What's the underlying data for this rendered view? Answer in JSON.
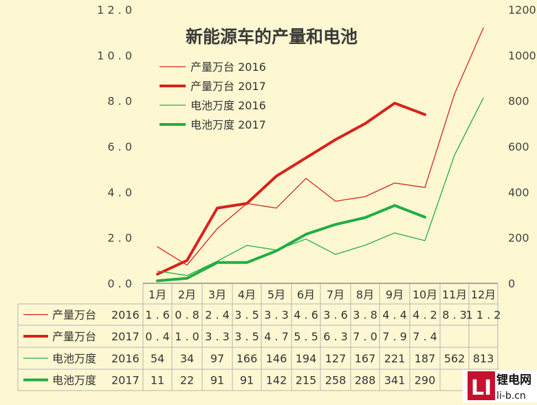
{
  "chart_data": {
    "type": "line",
    "title": "新能源车的产量和电池",
    "categories": [
      "1月",
      "2月",
      "3月",
      "4月",
      "5月",
      "6月",
      "7月",
      "8月",
      "9月",
      "10月",
      "11月",
      "12月"
    ],
    "y_left": {
      "ticks": [
        "0.0",
        "2.0",
        "4.0",
        "6.0",
        "8.0",
        "10.0",
        "12.0"
      ],
      "ylim": [
        0,
        12
      ]
    },
    "y_right": {
      "ticks": [
        "0",
        "200",
        "400",
        "600",
        "800",
        "1000",
        "1200"
      ],
      "ylim": [
        0,
        1200
      ]
    },
    "grid": "vertical lines in the data table",
    "legend_position": "top-left",
    "series": [
      {
        "name": "产量万台",
        "year": "2016",
        "axis": "left",
        "color": "#d9221a",
        "width": "thin",
        "values": [
          1.6,
          0.8,
          2.4,
          3.5,
          3.3,
          4.6,
          3.6,
          3.8,
          4.4,
          4.2,
          8.3,
          11.2
        ],
        "labels": [
          "1.6",
          "0.8",
          "2.4",
          "3.5",
          "3.3",
          "4.6",
          "3.6",
          "3.8",
          "4.4",
          "4.2",
          "8.3",
          "11.2"
        ]
      },
      {
        "name": "产量万台",
        "year": "2017",
        "axis": "left",
        "color": "#d9221a",
        "width": "thick",
        "values": [
          0.4,
          1.0,
          3.3,
          3.5,
          4.7,
          5.5,
          6.3,
          7.0,
          7.9,
          7.4,
          null,
          null
        ],
        "labels": [
          "0.4",
          "1.0",
          "3.3",
          "3.5",
          "4.7",
          "5.5",
          "6.3",
          "7.0",
          "7.9",
          "7.4",
          "",
          ""
        ]
      },
      {
        "name": "电池万度",
        "year": "2016",
        "axis": "right",
        "color": "#22ad45",
        "width": "thin",
        "values": [
          54,
          34,
          97,
          166,
          146,
          194,
          127,
          167,
          221,
          187,
          562,
          813
        ],
        "labels": [
          "54",
          "34",
          "97",
          "166",
          "146",
          "194",
          "127",
          "167",
          "221",
          "187",
          "562",
          "813"
        ]
      },
      {
        "name": "电池万度",
        "year": "2017",
        "axis": "right",
        "color": "#22ad45",
        "width": "thick",
        "values": [
          11,
          22,
          91,
          91,
          142,
          215,
          258,
          288,
          341,
          290,
          null,
          null
        ],
        "labels": [
          "11",
          "22",
          "91",
          "91",
          "142",
          "215",
          "258",
          "288",
          "341",
          "290",
          "",
          ""
        ]
      }
    ]
  },
  "watermark": {
    "brand_text": "锂电网",
    "domain": "li-b.cn",
    "logo_letters": "LI",
    "color": "#c8102e"
  }
}
